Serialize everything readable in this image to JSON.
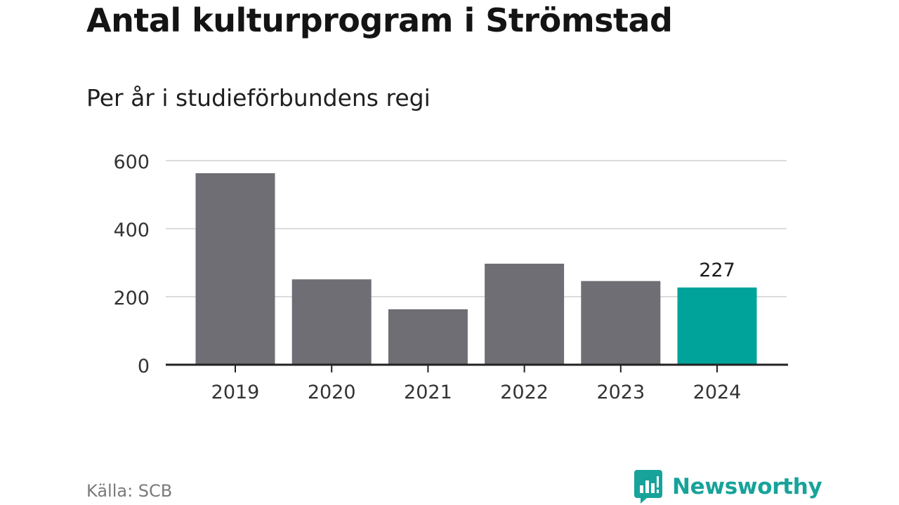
{
  "chart_data": {
    "type": "bar",
    "title": "Antal kulturprogram i Strömstad",
    "subtitle": "Per år i studieförbundens regi",
    "categories": [
      "2019",
      "2020",
      "2021",
      "2022",
      "2023",
      "2024"
    ],
    "values": [
      563,
      251,
      163,
      297,
      246,
      227
    ],
    "highlight_index": 5,
    "highlight_label": "227",
    "ylim": [
      0,
      600
    ],
    "yticks": [
      0,
      200,
      400,
      600
    ],
    "grid": true,
    "colors": {
      "bar": "#6f6e74",
      "highlight": "#00a39a",
      "grid": "#dcdcdc",
      "axis": "#222222"
    }
  },
  "source": "Källa: SCB",
  "brand": {
    "name": "Newsworthy",
    "logo_icon": "speech-bubble-bar-chart-icon",
    "color": "#17a39a"
  }
}
